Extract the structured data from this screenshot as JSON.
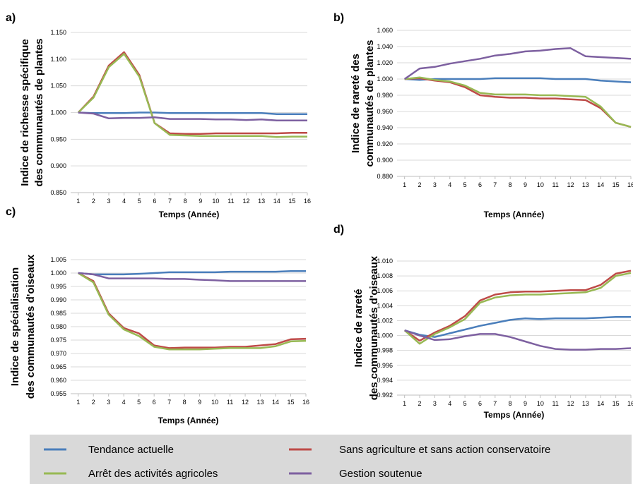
{
  "legend": {
    "items": [
      {
        "label": "Tendance actuelle",
        "color": "#4a7ebb"
      },
      {
        "label": "Sans agriculture et sans action conservatoire",
        "color": "#be4b48"
      },
      {
        "label": "Arrêt des activités agricoles",
        "color": "#98b954"
      },
      {
        "label": "Gestion soutenue",
        "color": "#7d60a0"
      }
    ],
    "background": "#d9d9d9"
  },
  "chart_data": [
    {
      "panel": "a)",
      "type": "line",
      "ylabel_lines": [
        "Indice de richesse spécifique",
        "des communautés de plantes"
      ],
      "xlabel": "Temps (Année)",
      "x": [
        1,
        2,
        3,
        4,
        5,
        6,
        7,
        8,
        9,
        10,
        11,
        12,
        13,
        14,
        15,
        16
      ],
      "ylim": [
        0.85,
        1.15
      ],
      "yticks": [
        "0.850",
        "0.900",
        "0.950",
        "1.000",
        "1.050",
        "1.100",
        "1.150"
      ],
      "series": [
        {
          "name": "Tendance actuelle",
          "color": "#4a7ebb",
          "values": [
            1.0,
            0.999,
            0.999,
            0.999,
            1.0,
            1.0,
            0.999,
            0.999,
            0.999,
            0.999,
            0.999,
            0.999,
            0.999,
            0.997,
            0.997,
            0.997
          ]
        },
        {
          "name": "Sans agriculture et sans action conservatoire",
          "color": "#be4b48",
          "values": [
            1.0,
            1.03,
            1.088,
            1.113,
            1.07,
            0.98,
            0.961,
            0.96,
            0.96,
            0.961,
            0.961,
            0.961,
            0.961,
            0.961,
            0.962,
            0.962
          ]
        },
        {
          "name": "Arrêt des activités agricoles",
          "color": "#98b954",
          "values": [
            1.0,
            1.028,
            1.085,
            1.11,
            1.067,
            0.98,
            0.958,
            0.957,
            0.956,
            0.956,
            0.956,
            0.956,
            0.956,
            0.954,
            0.955,
            0.955
          ]
        },
        {
          "name": "Gestion soutenue",
          "color": "#7d60a0",
          "values": [
            1.0,
            0.998,
            0.989,
            0.99,
            0.99,
            0.991,
            0.988,
            0.988,
            0.988,
            0.987,
            0.987,
            0.986,
            0.987,
            0.985,
            0.985,
            0.985
          ]
        }
      ]
    },
    {
      "panel": "b)",
      "type": "line",
      "ylabel_lines": [
        "Indice de rareté des",
        "communautés de plantes"
      ],
      "xlabel": "Temps (Année)",
      "x": [
        1,
        2,
        3,
        4,
        5,
        6,
        7,
        8,
        9,
        10,
        11,
        12,
        13,
        14,
        15,
        16
      ],
      "ylim": [
        0.88,
        1.06
      ],
      "yticks": [
        "0.880",
        "0.900",
        "0.920",
        "0.940",
        "0.960",
        "0.980",
        "1.000",
        "1.020",
        "1.040",
        "1.060"
      ],
      "series": [
        {
          "name": "Tendance actuelle",
          "color": "#4a7ebb",
          "values": [
            1.0,
            0.999,
            1.0,
            1.0,
            1.0,
            1.0,
            1.001,
            1.001,
            1.001,
            1.001,
            1.0,
            1.0,
            1.0,
            0.998,
            0.997,
            0.996
          ]
        },
        {
          "name": "Sans agriculture et sans action conservatoire",
          "color": "#be4b48",
          "values": [
            1.0,
            1.001,
            0.998,
            0.996,
            0.99,
            0.98,
            0.978,
            0.977,
            0.977,
            0.976,
            0.976,
            0.975,
            0.974,
            0.964,
            0.946,
            0.941
          ]
        },
        {
          "name": "Arrêt des activités agricoles",
          "color": "#98b954",
          "values": [
            1.0,
            1.002,
            0.999,
            0.997,
            0.992,
            0.983,
            0.981,
            0.981,
            0.981,
            0.98,
            0.98,
            0.979,
            0.978,
            0.966,
            0.946,
            0.941
          ]
        },
        {
          "name": "Gestion soutenue",
          "color": "#7d60a0",
          "values": [
            1.0,
            1.013,
            1.015,
            1.019,
            1.022,
            1.025,
            1.029,
            1.031,
            1.034,
            1.035,
            1.037,
            1.038,
            1.028,
            1.027,
            1.026,
            1.025
          ]
        }
      ]
    },
    {
      "panel": "c)",
      "type": "line",
      "ylabel_lines": [
        "Indice de spécialisation",
        "des communautés d'oiseaux"
      ],
      "xlabel": "Temps (Année)",
      "x": [
        1,
        2,
        3,
        4,
        5,
        6,
        7,
        8,
        9,
        10,
        11,
        12,
        13,
        14,
        15,
        16
      ],
      "ylim": [
        0.955,
        1.005
      ],
      "yticks": [
        "0.955",
        "0.960",
        "0.965",
        "0.970",
        "0.975",
        "0.980",
        "0.985",
        "0.990",
        "0.995",
        "1.000",
        "1.005"
      ],
      "series": [
        {
          "name": "Tendance actuelle",
          "color": "#4a7ebb",
          "values": [
            1.0,
            0.9995,
            0.9995,
            0.9995,
            0.9997,
            1.0,
            1.0003,
            1.0003,
            1.0003,
            1.0003,
            1.0005,
            1.0005,
            1.0005,
            1.0005,
            1.0007,
            1.0007
          ]
        },
        {
          "name": "Sans agriculture et sans action conservatoire",
          "color": "#be4b48",
          "values": [
            1.0,
            0.997,
            0.985,
            0.9795,
            0.9775,
            0.973,
            0.972,
            0.9722,
            0.9722,
            0.9722,
            0.9725,
            0.9725,
            0.973,
            0.9735,
            0.9753,
            0.9755
          ]
        },
        {
          "name": "Arrêt des activités agricoles",
          "color": "#98b954",
          "values": [
            1.0,
            0.9965,
            0.9845,
            0.979,
            0.9765,
            0.9725,
            0.9715,
            0.9715,
            0.9715,
            0.9718,
            0.972,
            0.972,
            0.972,
            0.9727,
            0.9745,
            0.9747
          ]
        },
        {
          "name": "Gestion soutenue",
          "color": "#7d60a0",
          "values": [
            1.0,
            0.9995,
            0.998,
            0.998,
            0.998,
            0.998,
            0.9978,
            0.9978,
            0.9975,
            0.9973,
            0.997,
            0.997,
            0.997,
            0.997,
            0.997,
            0.997
          ]
        }
      ]
    },
    {
      "panel": "d)",
      "type": "line",
      "ylabel_lines": [
        "Indice de rareté",
        "des communautés d'oiseaux"
      ],
      "xlabel": "Temps (Année)",
      "x": [
        1,
        2,
        3,
        4,
        5,
        6,
        7,
        8,
        9,
        10,
        11,
        12,
        13,
        14,
        15,
        16
      ],
      "ylim": [
        0.992,
        1.01
      ],
      "yticks": [
        "0.992",
        "0.994",
        "0.996",
        "0.998",
        "1.000",
        "1.002",
        "1.004",
        "1.006",
        "1.008",
        "1.010"
      ],
      "series": [
        {
          "name": "Tendance actuelle",
          "color": "#4a7ebb",
          "values": [
            1.0007,
            1.0001,
            0.9998,
            1.0003,
            1.0008,
            1.0013,
            1.0017,
            1.0021,
            1.0023,
            1.0022,
            1.0023,
            1.0023,
            1.0023,
            1.0024,
            1.0025,
            1.0025
          ]
        },
        {
          "name": "Sans agriculture et sans action conservatoire",
          "color": "#be4b48",
          "values": [
            1.0007,
            0.9993,
            1.0004,
            1.0013,
            1.0026,
            1.0047,
            1.0055,
            1.0058,
            1.0059,
            1.0059,
            1.006,
            1.0061,
            1.0061,
            1.0068,
            1.0083,
            1.0087
          ]
        },
        {
          "name": "Arrêt des activités agricoles",
          "color": "#98b954",
          "values": [
            1.0007,
            0.9989,
            1.0002,
            1.0011,
            1.0022,
            1.0044,
            1.0051,
            1.0054,
            1.0055,
            1.0055,
            1.0056,
            1.0057,
            1.0058,
            1.0064,
            1.008,
            1.0084
          ]
        },
        {
          "name": "Gestion soutenue",
          "color": "#7d60a0",
          "values": [
            1.0007,
            1.0,
            0.9994,
            0.9995,
            0.9999,
            1.0002,
            1.0002,
            0.9998,
            0.9992,
            0.9986,
            0.9982,
            0.9981,
            0.9981,
            0.9982,
            0.9982,
            0.9983
          ]
        }
      ]
    }
  ]
}
